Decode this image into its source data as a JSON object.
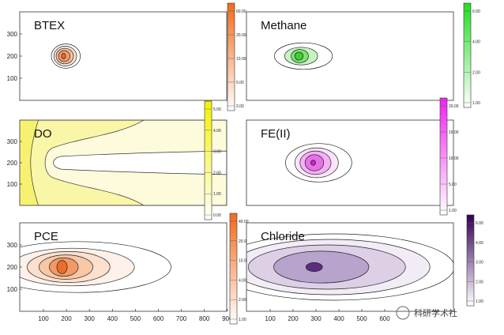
{
  "chart_data": [
    {
      "type": "heatmap",
      "title": "BTEX",
      "xlim": [
        0,
        1000
      ],
      "ylim": [
        0,
        400
      ],
      "yticks": [
        100,
        200,
        300
      ],
      "colorbar": {
        "color": "#f26a1b",
        "ticks": [
          "2.00",
          "5.00",
          "10.00",
          "20.00",
          "60.00"
        ]
      },
      "plume": {
        "cx": 210,
        "cy": 200,
        "levels": [
          {
            "rx": 70,
            "ry": 55,
            "fill": "#ffffff"
          },
          {
            "rx": 55,
            "ry": 45,
            "fill": "#fbe3d3"
          },
          {
            "rx": 42,
            "ry": 35,
            "fill": "#f7c3a2"
          },
          {
            "rx": 28,
            "ry": 25,
            "fill": "#f29a66"
          },
          {
            "rx": 10,
            "ry": 12,
            "fill": "#ea6d2b"
          }
        ]
      }
    },
    {
      "type": "heatmap",
      "title": "Methane",
      "xlim": [
        0,
        1000
      ],
      "ylim": [
        0,
        400
      ],
      "yticks": [],
      "colorbar": {
        "color": "#22dd22",
        "ticks": [
          "1.00",
          "2.00",
          "4.00",
          "6.00"
        ]
      },
      "plume": {
        "cx": 250,
        "cy": 200,
        "levels": [
          {
            "rx": 140,
            "ry": 60,
            "fill": "#ffffff"
          },
          {
            "rx": 80,
            "ry": 40,
            "fill": "#c7f3c1"
          },
          {
            "rx": 42,
            "ry": 30,
            "fill": "#7fe176"
          },
          {
            "rx": 20,
            "ry": 18,
            "fill": "#3cd12d"
          }
        ]
      }
    },
    {
      "type": "heatmap",
      "title": "DO",
      "xlim": [
        0,
        1000
      ],
      "ylim": [
        0,
        400
      ],
      "yticks": [
        100,
        200,
        300
      ],
      "colorbar": {
        "color": "#f2f200",
        "ticks": [
          "0.00",
          "1.00",
          "2.00",
          "3.00",
          "4.00",
          "5.00"
        ]
      }
    },
    {
      "type": "heatmap",
      "title": "FE(II)",
      "xlim": [
        0,
        1000
      ],
      "ylim": [
        0,
        400
      ],
      "yticks": [],
      "colorbar": {
        "color": "#ee22ee",
        "ticks": [
          "1.00",
          "5.00",
          "10.00",
          "15.00",
          "20.00"
        ]
      },
      "plume": {
        "cx": 320,
        "cy": 200,
        "levels": [
          {
            "rx": 160,
            "ry": 90,
            "fill": "#ffffff"
          },
          {
            "rx": 105,
            "ry": 70,
            "fill": "#fbe3fb"
          },
          {
            "rx": 75,
            "ry": 55,
            "fill": "#f3b0f3"
          },
          {
            "rx": 45,
            "ry": 38,
            "fill": "#e870e8"
          },
          {
            "rx": 12,
            "ry": 12,
            "fill": "#cc22cc"
          }
        ]
      }
    },
    {
      "type": "heatmap",
      "title": "PCE",
      "xlim": [
        0,
        1000
      ],
      "ylim": [
        0,
        400
      ],
      "yticks": [
        100,
        200,
        300
      ],
      "xticks": [
        100,
        200,
        300,
        400,
        500,
        600,
        700,
        800,
        900
      ],
      "colorbar": {
        "color": "#f26a1b",
        "ticks": [
          "1.00",
          "2.00",
          "4.00",
          "10.00",
          "20.00",
          "40.00"
        ]
      },
      "plume": {
        "cx": 200,
        "cy": 200,
        "levels": [
          {
            "rx": 450,
            "ry": 115,
            "fill": "#ffffff"
          },
          {
            "rx": 300,
            "ry": 85,
            "fill": "#fdf1e9"
          },
          {
            "rx": 200,
            "ry": 70,
            "fill": "#fbe0ce"
          },
          {
            "rx": 130,
            "ry": 55,
            "fill": "#f8c7a6"
          },
          {
            "rx": 70,
            "ry": 42,
            "fill": "#f29a66"
          },
          {
            "rx": 25,
            "ry": 30,
            "fill": "#ea6d2b"
          }
        ]
      }
    },
    {
      "type": "heatmap",
      "title": "Chloride",
      "xlim": [
        0,
        1000
      ],
      "ylim": [
        0,
        400
      ],
      "yticks": [],
      "xticks": [
        100,
        200,
        300,
        400,
        500,
        600
      ],
      "colorbar": {
        "color": "#330055",
        "ticks": [
          "1.00",
          "2.00",
          "3.00",
          "4.00",
          "6.00"
        ]
      },
      "plume": {
        "cx": 320,
        "cy": 200,
        "levels": [
          {
            "rx": 580,
            "ry": 150,
            "fill": "#ffffff"
          },
          {
            "rx": 480,
            "ry": 125,
            "fill": "#f1ecf5"
          },
          {
            "rx": 380,
            "ry": 100,
            "fill": "#dccfe6"
          },
          {
            "rx": 230,
            "ry": 72,
            "fill": "#b8a3cc"
          },
          {
            "rx": 40,
            "ry": 20,
            "fill": "#5a2d82"
          }
        ]
      }
    }
  ],
  "watermark": "科研学术社"
}
